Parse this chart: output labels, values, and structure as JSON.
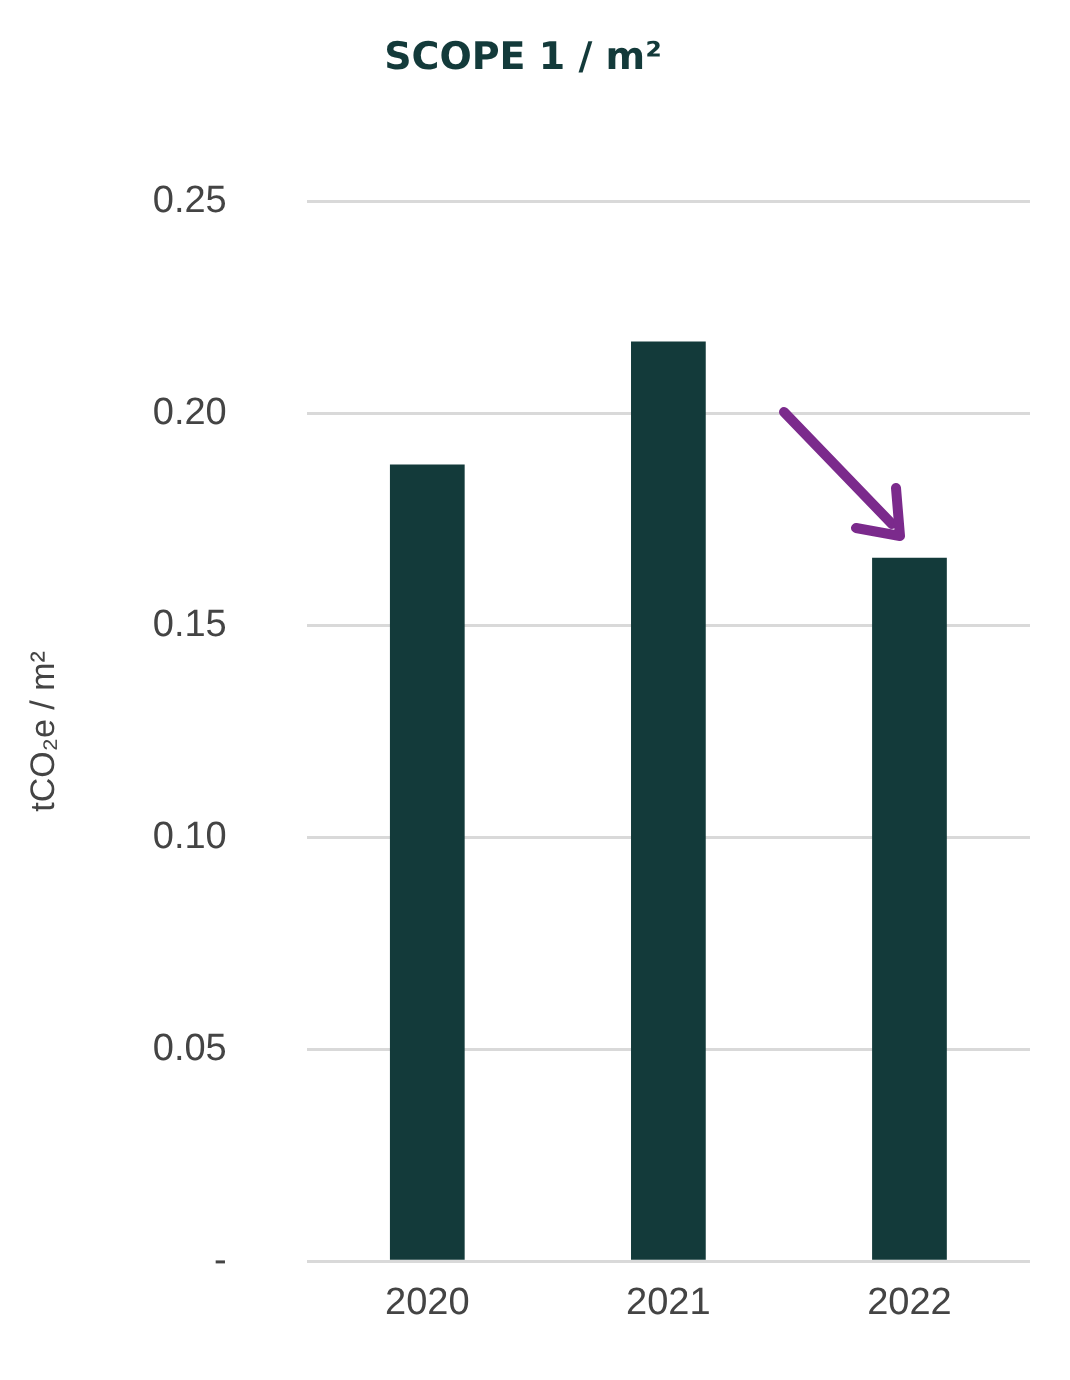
{
  "chart_data": {
    "type": "bar",
    "title": "SCOPE 1 / m²",
    "ylabel": "tCO₂e / m²",
    "categories": [
      "2020",
      "2021",
      "2022"
    ],
    "values": [
      0.188,
      0.217,
      0.166
    ],
    "color": "#133a3a",
    "ylim": [
      0,
      0.25
    ],
    "yticks": [
      {
        "value": 0,
        "label": "-"
      },
      0.05,
      {
        "value": 0.1,
        "label": "0.10"
      },
      0.15,
      {
        "value": 0.2,
        "label": "0.20"
      },
      0.25
    ],
    "grid": "y",
    "legend": false
  }
}
